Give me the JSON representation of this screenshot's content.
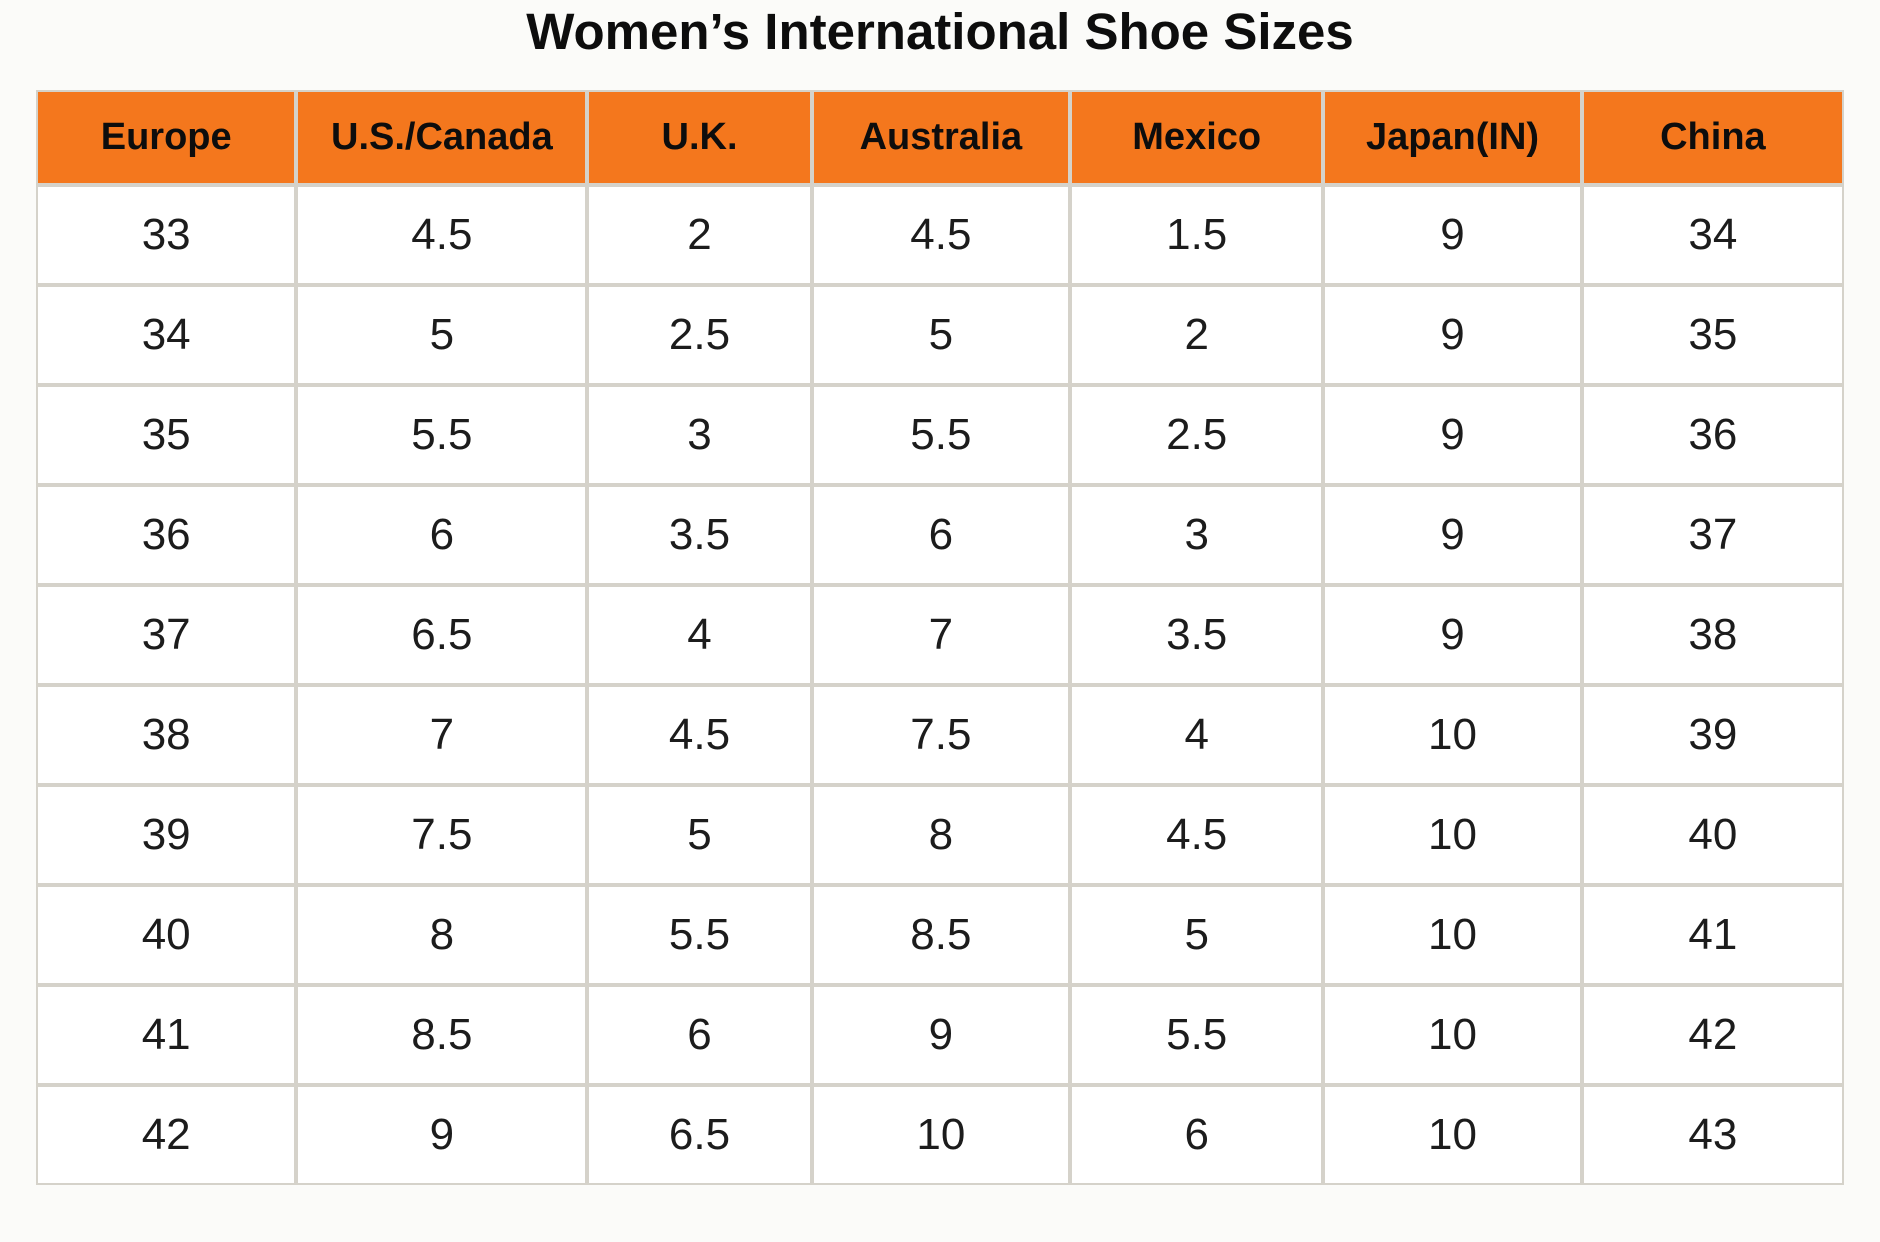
{
  "title": "Women’s International Shoe Sizes",
  "colors": {
    "header_bg": "#F4771D",
    "border": "#D5D2CA",
    "cell_bg": "#FFFFFF",
    "text": "#1C1C1C",
    "page_bg": "#FBFBF9"
  },
  "chart_data": {
    "type": "table",
    "title": "Women’s International Shoe Sizes",
    "columns": [
      "Europe",
      "U.S./Canada",
      "U.K.",
      "Australia",
      "Mexico",
      "Japan(IN)",
      "China"
    ],
    "rows": [
      [
        "33",
        "4.5",
        "2",
        "4.5",
        "1.5",
        "9",
        "34"
      ],
      [
        "34",
        "5",
        "2.5",
        "5",
        "2",
        "9",
        "35"
      ],
      [
        "35",
        "5.5",
        "3",
        "5.5",
        "2.5",
        "9",
        "36"
      ],
      [
        "36",
        "6",
        "3.5",
        "6",
        "3",
        "9",
        "37"
      ],
      [
        "37",
        "6.5",
        "4",
        "7",
        "3.5",
        "9",
        "38"
      ],
      [
        "38",
        "7",
        "4.5",
        "7.5",
        "4",
        "10",
        "39"
      ],
      [
        "39",
        "7.5",
        "5",
        "8",
        "4.5",
        "10",
        "40"
      ],
      [
        "40",
        "8",
        "5.5",
        "8.5",
        "5",
        "10",
        "41"
      ],
      [
        "41",
        "8.5",
        "6",
        "9",
        "5.5",
        "10",
        "42"
      ],
      [
        "42",
        "9",
        "6.5",
        "10",
        "6",
        "10",
        "43"
      ]
    ]
  }
}
